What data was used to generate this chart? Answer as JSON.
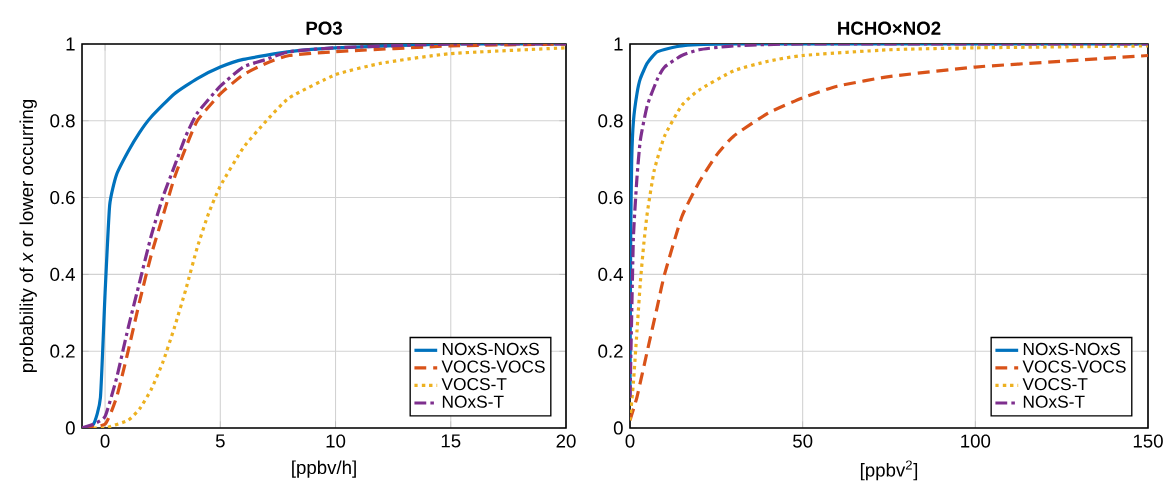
{
  "chart_data": [
    {
      "type": "line",
      "title": "PO3",
      "xlabel": "[ppbv/h]",
      "ylabel": "probability of *x* or lower occurring",
      "xlim": [
        -1,
        20
      ],
      "ylim": [
        0,
        1
      ],
      "xticks": [
        0,
        5,
        10,
        15,
        20
      ],
      "yticks": [
        0,
        0.2,
        0.4,
        0.6,
        0.8,
        1
      ],
      "grid": true,
      "legend": "bottom right",
      "series": [
        {
          "name": "NOxS-NOxS",
          "color": "#0072bd",
          "line_style": "solid",
          "x": [
            -1,
            -0.5,
            -0.2,
            0,
            0.2,
            0.5,
            1,
            1.5,
            2,
            3,
            4,
            5,
            6,
            8,
            10,
            15,
            20
          ],
          "values": [
            0,
            0.01,
            0.08,
            0.35,
            0.58,
            0.66,
            0.72,
            0.77,
            0.81,
            0.87,
            0.91,
            0.94,
            0.96,
            0.98,
            0.99,
            1,
            1
          ]
        },
        {
          "name": "VOCS-VOCS",
          "color": "#d95319",
          "line_style": "dashed",
          "x": [
            -1,
            0,
            0.5,
            1,
            1.5,
            2,
            2.5,
            3,
            3.5,
            4,
            5,
            6,
            7,
            8,
            10,
            15,
            20
          ],
          "values": [
            0,
            0.01,
            0.08,
            0.2,
            0.33,
            0.45,
            0.55,
            0.65,
            0.73,
            0.8,
            0.87,
            0.92,
            0.95,
            0.97,
            0.98,
            0.995,
            1
          ]
        },
        {
          "name": "VOCS-T",
          "color": "#edb120",
          "line_style": "dotted",
          "x": [
            -0.5,
            0,
            1,
            1.5,
            2,
            2.5,
            3,
            3.5,
            4,
            4.5,
            5,
            6,
            7,
            8,
            10,
            12,
            15,
            20
          ],
          "values": [
            0,
            0,
            0.02,
            0.05,
            0.1,
            0.17,
            0.26,
            0.36,
            0.47,
            0.56,
            0.63,
            0.73,
            0.8,
            0.86,
            0.92,
            0.95,
            0.975,
            0.99
          ]
        },
        {
          "name": "NOxS-T",
          "color": "#7e2f8e",
          "line_style": "dashdot",
          "x": [
            -1,
            -0.5,
            0,
            0.5,
            1,
            1.5,
            2,
            2.5,
            3,
            3.5,
            4,
            5,
            6,
            7,
            8,
            10,
            15,
            20
          ],
          "values": [
            0,
            0.01,
            0.03,
            0.13,
            0.26,
            0.38,
            0.5,
            0.6,
            0.68,
            0.76,
            0.82,
            0.89,
            0.94,
            0.96,
            0.98,
            0.99,
            1,
            1
          ]
        }
      ]
    },
    {
      "type": "line",
      "title": "HCHO×NO2",
      "xlabel": "[ppbv$^{2}$]",
      "xlim": [
        0,
        150
      ],
      "ylim": [
        0,
        1
      ],
      "xticks": [
        0,
        50,
        100,
        150
      ],
      "yticks": [
        0,
        0.2,
        0.4,
        0.6,
        0.8,
        1
      ],
      "grid": true,
      "legend": "bottom right",
      "series": [
        {
          "name": "NOxS-NOxS",
          "color": "#0072bd",
          "line_style": "solid",
          "x": [
            0,
            0.2,
            0.5,
            1,
            2,
            3,
            5,
            8,
            15,
            30,
            150
          ],
          "values": [
            0.08,
            0.5,
            0.7,
            0.8,
            0.87,
            0.91,
            0.95,
            0.98,
            0.995,
            1,
            1
          ]
        },
        {
          "name": "VOCS-VOCS",
          "color": "#d95319",
          "line_style": "dashed",
          "x": [
            0,
            2,
            5,
            8,
            10,
            15,
            20,
            25,
            30,
            40,
            50,
            60,
            75,
            100,
            125,
            150
          ],
          "values": [
            0.02,
            0.08,
            0.2,
            0.32,
            0.4,
            0.55,
            0.64,
            0.71,
            0.76,
            0.82,
            0.86,
            0.89,
            0.915,
            0.94,
            0.955,
            0.97
          ]
        },
        {
          "name": "VOCS-T",
          "color": "#edb120",
          "line_style": "dotted",
          "x": [
            0,
            1,
            2,
            3,
            4,
            5,
            7,
            10,
            15,
            20,
            30,
            40,
            50,
            75,
            100,
            150
          ],
          "values": [
            0.02,
            0.12,
            0.25,
            0.38,
            0.48,
            0.56,
            0.67,
            0.76,
            0.84,
            0.88,
            0.93,
            0.955,
            0.97,
            0.985,
            0.99,
            0.995
          ]
        },
        {
          "name": "NOxS-T",
          "color": "#7e2f8e",
          "line_style": "dashdot",
          "x": [
            0,
            0.5,
            1,
            2,
            3,
            5,
            8,
            10,
            15,
            20,
            30,
            50,
            150
          ],
          "values": [
            0.08,
            0.3,
            0.5,
            0.65,
            0.75,
            0.84,
            0.91,
            0.94,
            0.97,
            0.985,
            0.995,
            1,
            1
          ]
        }
      ]
    }
  ]
}
